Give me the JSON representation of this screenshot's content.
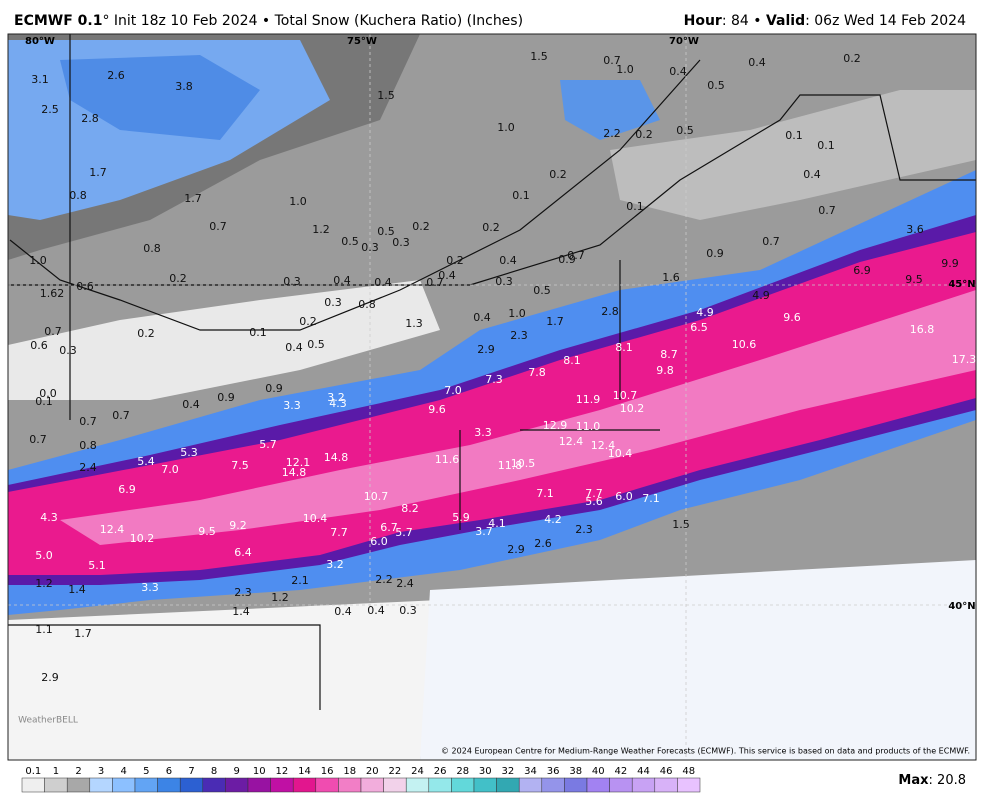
{
  "header": {
    "model": "ECMWF 0.1",
    "rest": "° Init 18z 10 Feb 2024 • Total Snow (Kuchera Ratio) (Inches)",
    "hour_key": "Hour",
    "hour_val": ": 84 • ",
    "valid_key": "Valid",
    "valid_val": ": 06z Wed 14 Feb 2024"
  },
  "map": {
    "lon_labels": [
      "80°W",
      "75°W",
      "70°W"
    ],
    "lat_labels": [
      "45°N",
      "40°N"
    ],
    "watermark": "WeatherBELL",
    "copyright": "© 2024 European Centre for Medium-Range Weather Forecasts (ECMWF). This service is based on data and products of the ECMWF.",
    "labels": [
      "3.1",
      "2.6",
      "3.8",
      "1.5",
      "1.5",
      "0.7",
      "1.0",
      "0.4",
      "0.4",
      "0.2",
      "0.5",
      "2.5",
      "2.8",
      "1.0",
      "2.2",
      "0.2",
      "0.5",
      "0.1",
      "0.1",
      "1.7",
      "0.2",
      "0.4",
      "0.8",
      "1.7",
      "1.0",
      "0.1",
      "0.1",
      "0.7",
      "0.7",
      "1.2",
      "0.5",
      "0.2",
      "0.2",
      "3.6",
      "0.5",
      "0.3",
      "0.3",
      "0.7",
      "0.8",
      "0.9",
      "1.0",
      "0.2",
      "0.4",
      "0.7",
      "0.9",
      "6.9",
      "9.9",
      "0.2",
      "0.3",
      "0.4",
      "0.4",
      "0.4",
      "0.7",
      "0.3",
      "1.6",
      "9.5",
      "0.6",
      "1.62",
      "0.5",
      "4.9",
      "0.3",
      "0.8",
      "2.8",
      "4.9",
      "9.6",
      "0.7",
      "0.4",
      "1.0",
      "1.7",
      "1.3",
      "0.2",
      "6.5",
      "16.8",
      "0.2",
      "0.1",
      "0.6",
      "0.3",
      "0.4",
      "0.5",
      "2.9",
      "2.3",
      "8.1",
      "8.1",
      "8.7",
      "10.6",
      "17.3",
      "9.8",
      "7.3",
      "7.8",
      "0.0",
      "0.1",
      "0.9",
      "0.9",
      "0.4",
      "3.2",
      "4.3",
      "7.0",
      "10.7",
      "11.9",
      "3.3",
      "9.6",
      "10.2",
      "0.7",
      "0.7",
      "5.7",
      "12.9",
      "11.0",
      "3.3",
      "0.7",
      "0.8",
      "12.4",
      "12.4",
      "14.8",
      "11.6",
      "11.8",
      "10.5",
      "10.4",
      "5.4",
      "5.3",
      "7.0",
      "7.5",
      "12.1",
      "14.8",
      "2.4",
      "6.9",
      "10.7",
      "8.2",
      "7.1",
      "7.7",
      "6.0",
      "7.1",
      "5.6",
      "4.3",
      "10.4",
      "5.9",
      "4.2",
      "12.4",
      "10.2",
      "9.5",
      "9.2",
      "7.7",
      "6.7",
      "5.7",
      "4.1",
      "3.7",
      "2.3",
      "1.5",
      "6.0",
      "2.9",
      "2.6",
      "6.4",
      "5.0",
      "5.1",
      "3.2",
      "1.2",
      "1.4",
      "3.3",
      "2.1",
      "2.2",
      "2.4",
      "2.3",
      "1.2",
      "1.4",
      "0.4",
      "0.4",
      "0.3",
      "1.1",
      "1.7",
      "2.9"
    ]
  },
  "legend": {
    "ticks": [
      0.1,
      1,
      2,
      3,
      4,
      5,
      6,
      7,
      8,
      9,
      10,
      12,
      14,
      16,
      18,
      20,
      22,
      24,
      26,
      28,
      30,
      32,
      34,
      36,
      38,
      40,
      42,
      44,
      46,
      48
    ],
    "colors": [
      "#efefef",
      "#cfcfcf",
      "#a8a8a8",
      "#b4d6ff",
      "#8cc0ff",
      "#62a4f4",
      "#3c84e6",
      "#2c60d2",
      "#4a2cb4",
      "#6c1ca4",
      "#9812a2",
      "#c010a4",
      "#e2168e",
      "#f04cb0",
      "#f27ec6",
      "#f2addc",
      "#f2d2ea",
      "#c4f2f2",
      "#94e8ea",
      "#62d8da",
      "#42c0c8",
      "#32a8b2",
      "#b2b2f2",
      "#9494ea",
      "#7a7ae2",
      "#a282f2",
      "#b892f2",
      "#c8a2f4",
      "#d8b2f8",
      "#e8c2ff"
    ],
    "max_key": "Max",
    "max_val": ": 20.8"
  }
}
